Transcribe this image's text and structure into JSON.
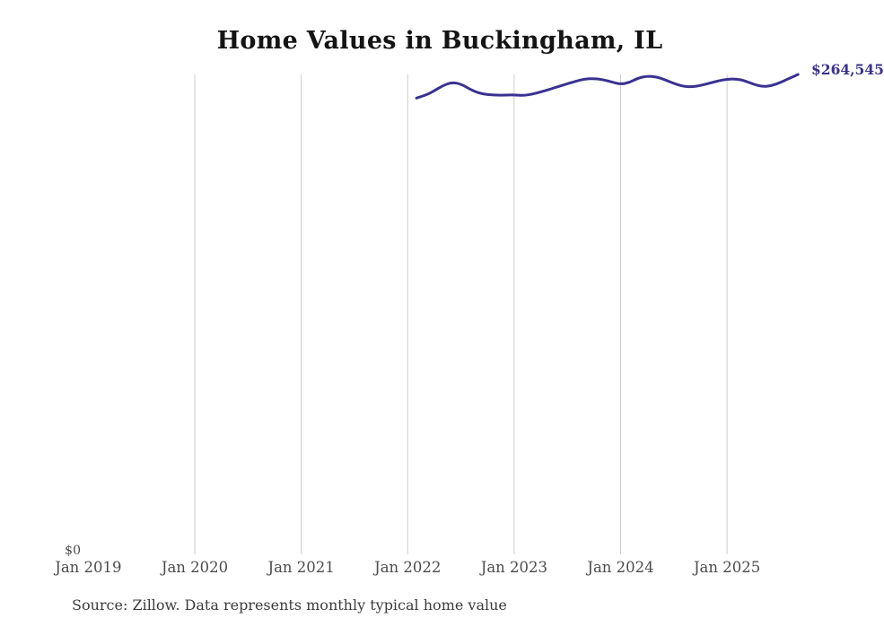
{
  "chart_data": {
    "type": "line",
    "title": "Home Values in Buckingham, IL",
    "source_note": "Source: Zillow. Data represents monthly typical home value",
    "y_axis_zero_label": "$0",
    "end_label": "$264,545",
    "line_color": "#3a3191",
    "gridline_color": "#cccccc",
    "axis_label_color": "#4c4c4c",
    "ylim": [
      0,
      264545
    ],
    "x_tick_labels": [
      "Jan 2019",
      "Jan 2020",
      "Jan 2021",
      "Jan 2022",
      "Jan 2023",
      "Jan 2024",
      "Jan 2025"
    ],
    "gridline_years": [
      2020,
      2021,
      2022,
      2023,
      2024,
      2025
    ],
    "legend": "none",
    "grid": "vertical-only",
    "series": [
      {
        "name": "Monthly typical home value",
        "x": [
          "2022-02",
          "2022-03",
          "2022-04",
          "2022-05",
          "2022-06",
          "2022-07",
          "2022-08",
          "2022-09",
          "2022-10",
          "2022-11",
          "2022-12",
          "2023-01",
          "2023-02",
          "2023-03",
          "2023-04",
          "2023-05",
          "2023-06",
          "2023-07",
          "2023-08",
          "2023-09",
          "2023-10",
          "2023-11",
          "2023-12",
          "2024-01",
          "2024-02",
          "2024-03",
          "2024-04",
          "2024-05",
          "2024-06",
          "2024-07",
          "2024-08",
          "2024-09",
          "2024-10",
          "2024-11",
          "2024-12",
          "2025-01",
          "2025-02",
          "2025-03",
          "2025-04",
          "2025-05",
          "2025-06",
          "2025-07",
          "2025-08",
          "2025-09"
        ],
        "values": [
          251500,
          253000,
          255500,
          258500,
          260200,
          259300,
          256400,
          254300,
          253400,
          253100,
          253100,
          253300,
          252900,
          253600,
          254900,
          256300,
          257900,
          259400,
          260900,
          262000,
          262300,
          261700,
          260400,
          259100,
          260100,
          262600,
          263600,
          263300,
          261600,
          259600,
          258000,
          257700,
          258400,
          259700,
          261000,
          261900,
          262100,
          261100,
          259100,
          257800,
          258300,
          260100,
          262400,
          264545
        ]
      }
    ]
  }
}
